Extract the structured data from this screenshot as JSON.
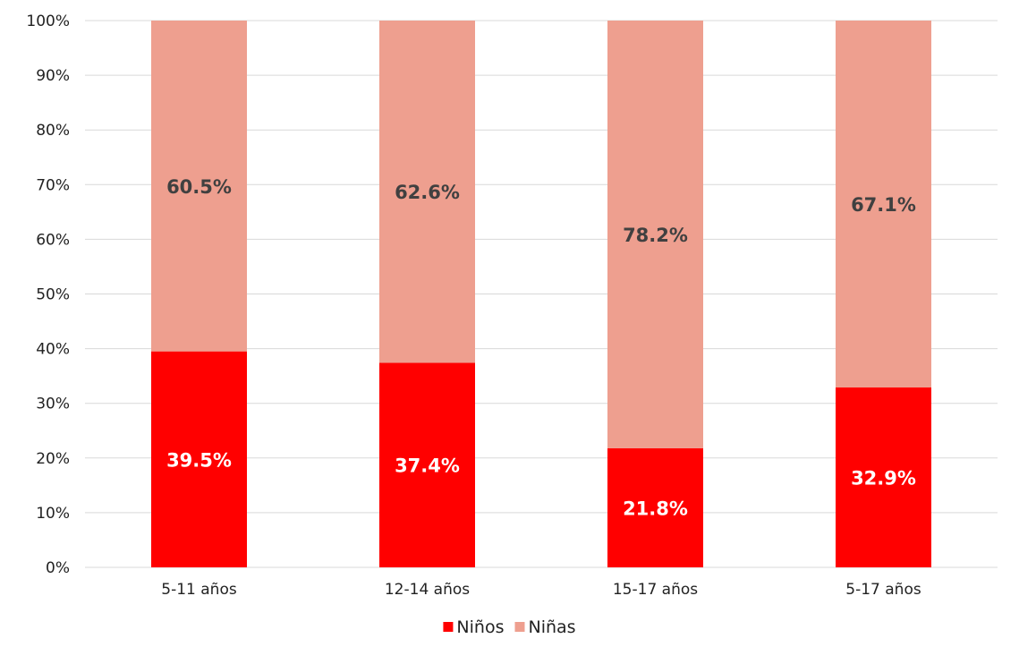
{
  "chart_data": {
    "type": "bar",
    "stacked": true,
    "categories": [
      "5-11 años",
      "12-14 años",
      "15-17 años",
      "5-17 años"
    ],
    "series": [
      {
        "name": "Niños",
        "values": [
          39.5,
          37.4,
          21.8,
          32.9
        ],
        "labels": [
          "39.5%",
          "37.4%",
          "21.8%",
          "32.9%"
        ],
        "color": "#ff0000",
        "label_color": "#ffffff"
      },
      {
        "name": "Niñas",
        "values": [
          60.5,
          62.6,
          78.2,
          67.1
        ],
        "labels": [
          "60.5%",
          "62.6%",
          "78.2%",
          "67.1%"
        ],
        "color": "#ee9f8f",
        "label_color": "#404040"
      }
    ],
    "y_ticks": [
      "0%",
      "10%",
      "20%",
      "30%",
      "40%",
      "50%",
      "60%",
      "70%",
      "80%",
      "90%",
      "100%"
    ],
    "ylim": [
      0,
      100
    ],
    "grid": true,
    "legend_position": "bottom",
    "gridline_color": "#d9d9d9"
  }
}
